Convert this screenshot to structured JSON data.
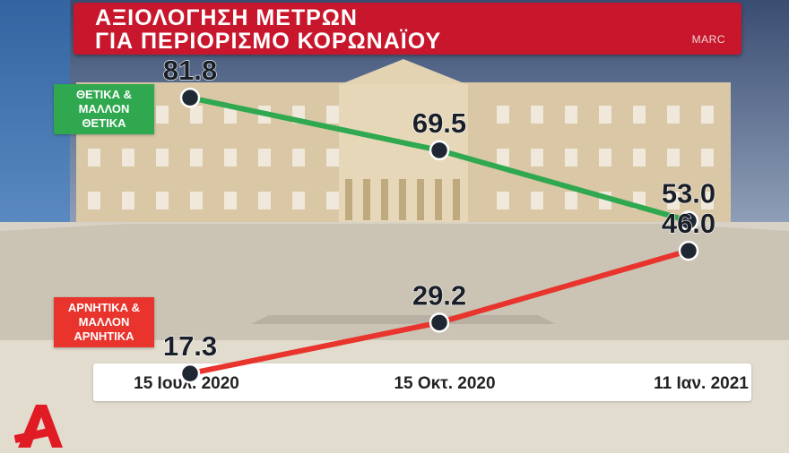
{
  "title": {
    "line1": "ΑΞΙΟΛΟΓΗΣΗ ΜΕΤΡΩΝ",
    "line2": "ΓΙΑ ΠΕΡΙΟΡΙΣΜΟ ΚΟΡΩΝΑΪΟΥ"
  },
  "source": "MARC",
  "legend": {
    "positive": "ΘΕΤΙΚΑ & ΜΑΛΛΟΝ ΘΕΤΙΚΑ",
    "negative": "ΑΡΝΗΤΙΚΑ & ΜΑΛΛΟΝ ΑΡΝΗΤΙΚΑ"
  },
  "colors": {
    "positive": "#2fa84f",
    "negative": "#e8342c",
    "title_bg": "#c8172c",
    "marker": "#1f2733"
  },
  "chart_data": {
    "type": "line",
    "x": [
      "15 Ιουλ. 2020",
      "15 Οκτ. 2020",
      "11 Ιαν. 2021"
    ],
    "series": [
      {
        "name": "ΘΕΤΙΚΑ & ΜΑΛΛΟΝ ΘΕΤΙΚΑ",
        "values": [
          81.8,
          69.5,
          53.0
        ],
        "labels": [
          "81.8",
          "69.5",
          "53.0"
        ],
        "color": "#2fa84f"
      },
      {
        "name": "ΑΡΝΗΤΙΚΑ & ΜΑΛΛΟΝ ΑΡΝΗΤΙΚΑ",
        "values": [
          17.3,
          29.2,
          46.0
        ],
        "labels": [
          "17.3",
          "29.2",
          "46.0"
        ],
        "color": "#e8342c"
      }
    ],
    "ylim": [
      10,
      90
    ],
    "grid": false,
    "legend_position": "left"
  },
  "logo": {
    "letter": "A",
    "color": "#e01b24"
  }
}
